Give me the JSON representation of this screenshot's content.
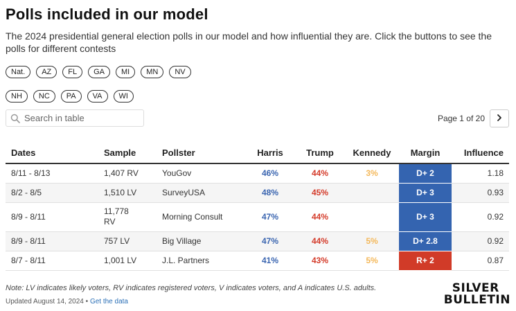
{
  "header": {
    "title": "Polls included in our model",
    "subtitle": "The 2024 presidential general election polls in our model and how influential they are. Click the buttons to see the polls for different contests"
  },
  "contest_buttons": {
    "row1": [
      "Nat.",
      "AZ",
      "FL",
      "GA",
      "MI",
      "MN",
      "NV"
    ],
    "row2": [
      "NH",
      "NC",
      "PA",
      "VA",
      "WI"
    ]
  },
  "search": {
    "placeholder": "Search in table",
    "icon": "search-icon"
  },
  "pager": {
    "text": "Page 1 of 20",
    "next_icon": "chevron-right-icon"
  },
  "table": {
    "columns": [
      "Dates",
      "Sample",
      "Pollster",
      "Harris",
      "Trump",
      "Kennedy",
      "Margin",
      "Influence"
    ],
    "rows": [
      {
        "dates": "8/11 - 8/13",
        "sample": "1,407 RV",
        "pollster": "YouGov",
        "harris": "46%",
        "trump": "44%",
        "kennedy": "3%",
        "margin": "D+ 2",
        "margin_party": "D",
        "influence": "1.18"
      },
      {
        "dates": "8/2 - 8/5",
        "sample": "1,510 LV",
        "pollster": "SurveyUSA",
        "harris": "48%",
        "trump": "45%",
        "kennedy": "",
        "margin": "D+ 3",
        "margin_party": "D",
        "influence": "0.93"
      },
      {
        "dates": "8/9 - 8/11",
        "sample": "11,778 RV",
        "pollster": "Morning Consult",
        "harris": "47%",
        "trump": "44%",
        "kennedy": "",
        "margin": "D+ 3",
        "margin_party": "D",
        "influence": "0.92"
      },
      {
        "dates": "8/9 - 8/11",
        "sample": "757 LV",
        "pollster": "Big Village",
        "harris": "47%",
        "trump": "44%",
        "kennedy": "5%",
        "margin": "D+ 2.8",
        "margin_party": "D",
        "influence": "0.92"
      },
      {
        "dates": "8/7 - 8/11",
        "sample": "1,001 LV",
        "pollster": "J.L. Partners",
        "harris": "41%",
        "trump": "43%",
        "kennedy": "5%",
        "margin": "R+ 2",
        "margin_party": "R",
        "influence": "0.87"
      }
    ]
  },
  "colors": {
    "dem": "#3464b0",
    "rep": "#d13b28",
    "harris_text": "#3a65b0",
    "trump_text": "#d43b2a",
    "kennedy_text": "#f4b85a"
  },
  "footer": {
    "note": "Note: LV indicates likely voters, RV indicates registered voters, V indicates voters, and A indicates U.S. adults.",
    "updated": "Updated August 14, 2024",
    "separator": " • ",
    "link": "Get the data",
    "logo_line1": "SILVER",
    "logo_line2": "BULLETIN"
  }
}
